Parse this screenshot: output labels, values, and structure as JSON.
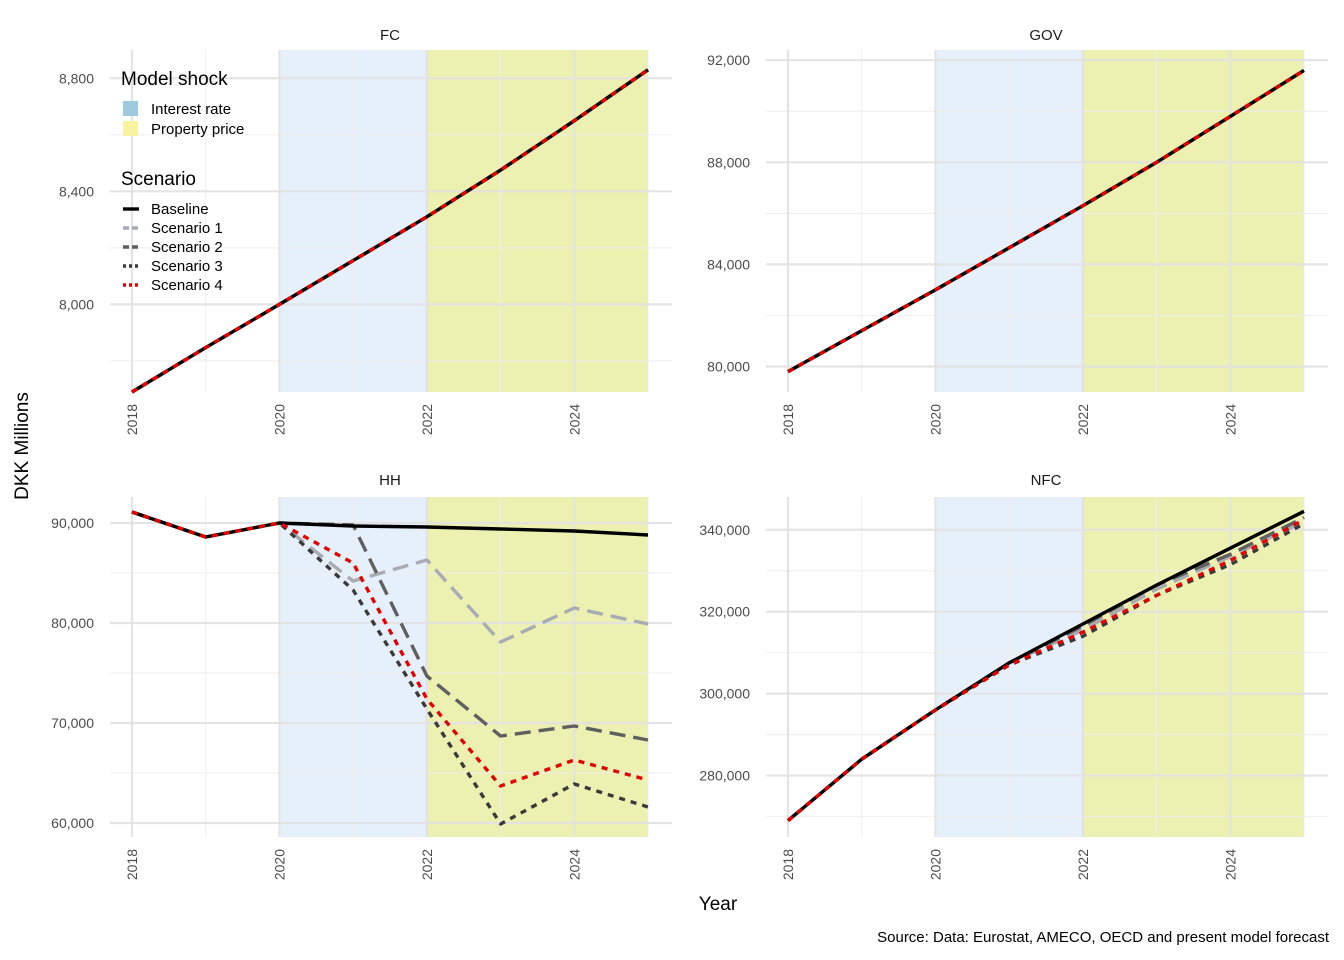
{
  "figure": {
    "ylabel": "DKK Millions",
    "xlabel": "Year",
    "caption": "Source: Data: Eurostat, AMECO, OECD and present model forecast"
  },
  "legend": {
    "shock_title": "Model shock",
    "shock_items": [
      {
        "label": "Interest rate",
        "color": "#9ecae1"
      },
      {
        "label": "Property price",
        "color": "#f7f3a1"
      }
    ],
    "scenario_title": "Scenario",
    "placement": "top-left of FC panel"
  },
  "colors": {
    "interest_band": "#e6f0fa",
    "property_band": "#ecf0b0",
    "baseline": "#000000",
    "scenario1": "#a9abb3",
    "scenario2": "#5f5f5f",
    "scenario3": "#3a3a3a",
    "scenario4": "#e00000",
    "grid": "#e8e8e8"
  },
  "chart_data": [
    {
      "type": "line",
      "title": "FC",
      "x": [
        2018,
        2019,
        2020,
        2021,
        2022,
        2023,
        2024,
        2025
      ],
      "x_ticks": [
        "2018",
        "2020",
        "2022",
        "2024"
      ],
      "xlim": [
        2018,
        2025
      ],
      "ylim": [
        7690,
        8900
      ],
      "y_ticks": [
        8000,
        8400,
        8800
      ],
      "y_tick_labels": [
        "8,000",
        "8,400",
        "8,800"
      ],
      "shading": [
        {
          "shock": "Interest rate",
          "from": 2020,
          "to": 2022
        },
        {
          "shock": "Property price",
          "from": 2022,
          "to": 2025
        }
      ],
      "series": [
        {
          "name": "Baseline",
          "values": [
            7690,
            7847,
            8000,
            8155,
            8310,
            8475,
            8650,
            8830
          ]
        },
        {
          "name": "Scenario 1",
          "values": [
            7690,
            7847,
            8000,
            8155,
            8310,
            8475,
            8650,
            8830
          ]
        },
        {
          "name": "Scenario 2",
          "values": [
            7690,
            7847,
            8000,
            8155,
            8310,
            8475,
            8650,
            8830
          ]
        },
        {
          "name": "Scenario 3",
          "values": [
            7690,
            7847,
            8000,
            8155,
            8310,
            8475,
            8650,
            8830
          ]
        },
        {
          "name": "Scenario 4",
          "values": [
            7690,
            7847,
            8000,
            8155,
            8310,
            8475,
            8650,
            8830
          ]
        }
      ]
    },
    {
      "type": "line",
      "title": "GOV",
      "x": [
        2018,
        2019,
        2020,
        2021,
        2022,
        2023,
        2024,
        2025
      ],
      "x_ticks": [
        "2018",
        "2020",
        "2022",
        "2024"
      ],
      "xlim": [
        2018,
        2025
      ],
      "ylim": [
        79000,
        92400
      ],
      "y_ticks": [
        80000,
        84000,
        88000,
        92000
      ],
      "y_tick_labels": [
        "80,000",
        "84,000",
        "88,000",
        "92,000"
      ],
      "shading": [
        {
          "shock": "Interest rate",
          "from": 2020,
          "to": 2022
        },
        {
          "shock": "Property price",
          "from": 2022,
          "to": 2025
        }
      ],
      "series": [
        {
          "name": "Baseline",
          "values": [
            79800,
            81400,
            83000,
            84650,
            86300,
            88000,
            89800,
            91600
          ]
        },
        {
          "name": "Scenario 1",
          "values": [
            79800,
            81400,
            83000,
            84650,
            86300,
            88000,
            89800,
            91600
          ]
        },
        {
          "name": "Scenario 2",
          "values": [
            79800,
            81400,
            83000,
            84650,
            86300,
            88000,
            89800,
            91600
          ]
        },
        {
          "name": "Scenario 3",
          "values": [
            79800,
            81400,
            83000,
            84650,
            86300,
            88000,
            89800,
            91600
          ]
        },
        {
          "name": "Scenario 4",
          "values": [
            79800,
            81400,
            83000,
            84650,
            86300,
            88000,
            89800,
            91600
          ]
        }
      ]
    },
    {
      "type": "line",
      "title": "HH",
      "x": [
        2018,
        2019,
        2020,
        2021,
        2022,
        2023,
        2024,
        2025
      ],
      "x_ticks": [
        "2018",
        "2020",
        "2022",
        "2024"
      ],
      "xlim": [
        2018,
        2025
      ],
      "ylim": [
        58600,
        92600
      ],
      "y_ticks": [
        60000,
        70000,
        80000,
        90000
      ],
      "y_tick_labels": [
        "60,000",
        "70,000",
        "80,000",
        "90,000"
      ],
      "shading": [
        {
          "shock": "Interest rate",
          "from": 2020,
          "to": 2022
        },
        {
          "shock": "Property price",
          "from": 2022,
          "to": 2025
        }
      ],
      "series": [
        {
          "name": "Baseline",
          "values": [
            91100,
            88600,
            90000,
            89700,
            89600,
            89400,
            89200,
            88800
          ]
        },
        {
          "name": "Scenario 1",
          "values": [
            91100,
            88600,
            90000,
            84200,
            86300,
            78100,
            81500,
            79900
          ]
        },
        {
          "name": "Scenario 2",
          "values": [
            91100,
            88600,
            90000,
            89800,
            74700,
            68700,
            69700,
            68300
          ]
        },
        {
          "name": "Scenario 3",
          "values": [
            91100,
            88600,
            90000,
            83300,
            71400,
            59900,
            63900,
            61600
          ]
        },
        {
          "name": "Scenario 4",
          "values": [
            91100,
            88600,
            90000,
            86000,
            72400,
            63700,
            66300,
            64300
          ]
        }
      ]
    },
    {
      "type": "line",
      "title": "NFC",
      "x": [
        2018,
        2019,
        2020,
        2021,
        2022,
        2023,
        2024,
        2025
      ],
      "x_ticks": [
        "2018",
        "2020",
        "2022",
        "2024"
      ],
      "xlim": [
        2018,
        2025
      ],
      "ylim": [
        265000,
        348000
      ],
      "y_ticks": [
        280000,
        300000,
        320000,
        340000
      ],
      "y_tick_labels": [
        "280,000",
        "300,000",
        "320,000",
        "340,000"
      ],
      "shading": [
        {
          "shock": "Interest rate",
          "from": 2020,
          "to": 2022
        },
        {
          "shock": "Property price",
          "from": 2022,
          "to": 2025
        }
      ],
      "series": [
        {
          "name": "Baseline",
          "values": [
            269000,
            284000,
            296000,
            307500,
            317000,
            326500,
            335500,
            344500
          ]
        },
        {
          "name": "Scenario 1",
          "values": [
            269000,
            284000,
            296000,
            307500,
            315500,
            325500,
            333500,
            342000
          ]
        },
        {
          "name": "Scenario 2",
          "values": [
            269000,
            284000,
            296000,
            307500,
            316500,
            326500,
            334000,
            343000
          ]
        },
        {
          "name": "Scenario 3",
          "values": [
            269000,
            284000,
            296000,
            307000,
            314000,
            324000,
            331500,
            341500
          ]
        },
        {
          "name": "Scenario 4",
          "values": [
            269000,
            284000,
            296000,
            307000,
            315000,
            324000,
            332500,
            342500
          ]
        }
      ]
    }
  ]
}
